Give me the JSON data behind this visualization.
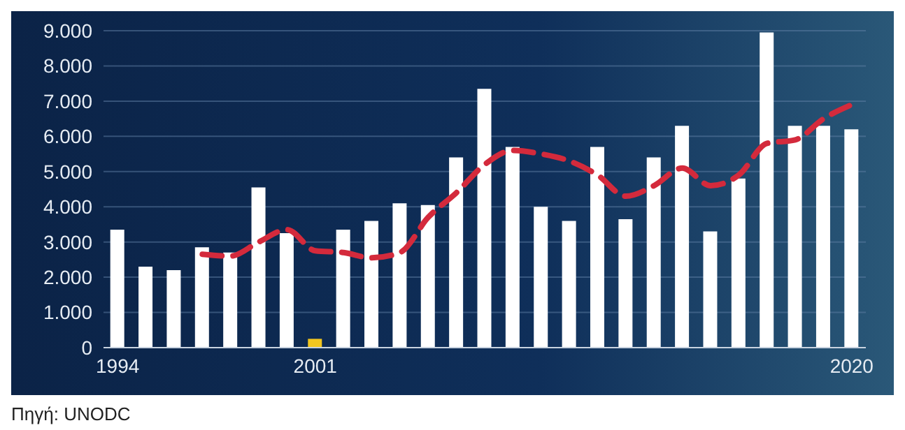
{
  "chart_data": {
    "type": "bar",
    "categories": [
      "1994",
      null,
      null,
      null,
      null,
      null,
      null,
      "2001",
      null,
      null,
      null,
      null,
      null,
      null,
      null,
      null,
      null,
      null,
      null,
      null,
      null,
      null,
      null,
      null,
      null,
      null,
      "2020"
    ],
    "series": [
      {
        "color": "#ffffff",
        "colors": [
          "#ffffff",
          "#ffffff",
          "#ffffff",
          "#ffffff",
          "#ffffff",
          "#ffffff",
          "#ffffff",
          "#f2c61f",
          "#ffffff",
          "#ffffff",
          "#ffffff",
          "#ffffff",
          "#ffffff",
          "#ffffff",
          "#ffffff",
          "#ffffff",
          "#ffffff",
          "#ffffff",
          "#ffffff",
          "#ffffff",
          "#ffffff",
          "#ffffff",
          "#ffffff",
          "#ffffff",
          "#ffffff",
          "#ffffff",
          "#ffffff"
        ],
        "values": [
          3350,
          2300,
          2200,
          2850,
          2700,
          4550,
          3250,
          250,
          3350,
          3600,
          4100,
          4050,
          5400,
          7350,
          5700,
          4000,
          3600,
          5700,
          3650,
          5400,
          6300,
          3300,
          4800,
          8950,
          6300,
          6300,
          6200
        ]
      },
      {
        "type": "line",
        "color": "#d42a3c",
        "line_style": "dashed",
        "values": [
          null,
          null,
          null,
          2650,
          2600,
          3000,
          3350,
          2750,
          2700,
          2550,
          2700,
          3700,
          4400,
          5200,
          5600,
          5500,
          5300,
          4900,
          4300,
          4600,
          5100,
          4600,
          4900,
          5800,
          5900,
          6500,
          6900
        ]
      }
    ],
    "ylim": [
      0,
      9000
    ],
    "yticks": [
      {
        "value": 0,
        "label": "0"
      },
      {
        "value": 1000,
        "label": "1.000"
      },
      {
        "value": 2000,
        "label": "2.000"
      },
      {
        "value": 3000,
        "label": "3.000"
      },
      {
        "value": 4000,
        "label": "4.000"
      },
      {
        "value": 5000,
        "label": "5.000"
      },
      {
        "value": 6000,
        "label": "6.000"
      },
      {
        "value": 7000,
        "label": "7.000"
      },
      {
        "value": 8000,
        "label": "8.000"
      },
      {
        "value": 9000,
        "label": "9.000"
      }
    ],
    "grid": "y",
    "marker": "none",
    "annotations": [
      "Πηγή: UNODC"
    ]
  }
}
